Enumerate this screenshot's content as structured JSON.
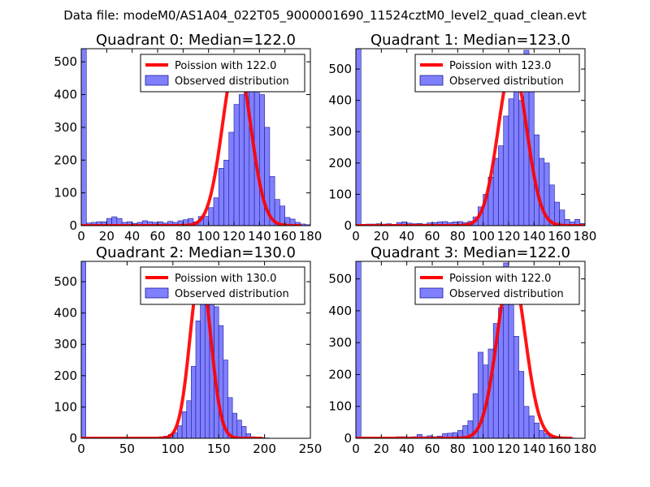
{
  "figure": {
    "suptitle": "Data file: modeM0/AS1A04_022T05_9000001690_11524cztM0_level2_quad_clean.evt"
  },
  "chart_data": [
    {
      "type": "histogram_with_line",
      "title": "Quadrant 0: Median=122.0",
      "median": 122.0,
      "xlim": [
        0,
        180
      ],
      "xticks": [
        0,
        20,
        40,
        60,
        80,
        100,
        120,
        140,
        160,
        180
      ],
      "ylim": [
        0,
        540
      ],
      "yticks": [
        0,
        100,
        200,
        300,
        400,
        500
      ],
      "bin_width": 4,
      "bin_start": 0,
      "values": [
        540,
        8,
        10,
        12,
        12,
        22,
        27,
        22,
        10,
        12,
        7,
        10,
        15,
        12,
        10,
        12,
        8,
        13,
        10,
        15,
        18,
        22,
        12,
        28,
        28,
        55,
        85,
        175,
        200,
        285,
        370,
        400,
        500,
        420,
        505,
        400,
        300,
        150,
        80,
        60,
        25,
        20,
        10,
        5,
        3,
        1
      ],
      "fit": {
        "mu": 122.0,
        "sigma": 11.0,
        "peak": 510,
        "x_range": [
          0,
          173
        ]
      },
      "legend": [
        {
          "label": "Poission with 122.0",
          "kind": "line",
          "color": "#ff0000"
        },
        {
          "label": "Observed distribution",
          "kind": "patch",
          "color": "#8080ff"
        }
      ]
    },
    {
      "type": "histogram_with_line",
      "title": "Quadrant 1: Median=123.0",
      "median": 123.0,
      "xlim": [
        0,
        180
      ],
      "xticks": [
        0,
        20,
        40,
        60,
        80,
        100,
        120,
        140,
        160,
        180
      ],
      "ylim": [
        0,
        565
      ],
      "yticks": [
        0,
        100,
        200,
        300,
        400,
        500
      ],
      "bin_width": 4,
      "bin_start": 0,
      "values": [
        565,
        4,
        5,
        5,
        6,
        5,
        6,
        4,
        10,
        12,
        8,
        6,
        7,
        5,
        9,
        10,
        12,
        13,
        10,
        12,
        13,
        10,
        14,
        28,
        60,
        100,
        155,
        215,
        255,
        350,
        405,
        500,
        400,
        560,
        500,
        290,
        215,
        200,
        130,
        75,
        50,
        20,
        12,
        20,
        7,
        5,
        5
      ],
      "fit": {
        "mu": 123.0,
        "sigma": 11.1,
        "peak": 515,
        "x_range": [
          0,
          180
        ]
      },
      "legend": [
        {
          "label": "Poission with 123.0",
          "kind": "line",
          "color": "#ff0000"
        },
        {
          "label": "Observed distribution",
          "kind": "patch",
          "color": "#8080ff"
        }
      ]
    },
    {
      "type": "histogram_with_line",
      "title": "Quadrant 2: Median=130.0",
      "median": 130.0,
      "xlim": [
        0,
        250
      ],
      "xticks": [
        0,
        50,
        100,
        150,
        200,
        250
      ],
      "ylim": [
        0,
        565
      ],
      "yticks": [
        0,
        100,
        200,
        300,
        400,
        500
      ],
      "bin_width": 5,
      "bin_start": 0,
      "values": [
        565,
        3,
        3,
        2,
        2,
        2,
        2,
        2,
        2,
        3,
        3,
        2,
        3,
        3,
        3,
        3,
        4,
        5,
        7,
        12,
        18,
        40,
        85,
        120,
        230,
        375,
        440,
        520,
        430,
        420,
        360,
        250,
        130,
        80,
        58,
        38,
        15,
        5,
        3,
        2,
        1
      ],
      "fit": {
        "mu": 130.0,
        "sigma": 11.4,
        "peak": 530,
        "x_range": [
          0,
          198
        ]
      },
      "legend": [
        {
          "label": "Poission with 130.0",
          "kind": "line",
          "color": "#ff0000"
        },
        {
          "label": "Observed distribution",
          "kind": "patch",
          "color": "#8080ff"
        }
      ]
    },
    {
      "type": "histogram_with_line",
      "title": "Quadrant 3: Median=122.0",
      "median": 122.0,
      "xlim": [
        0,
        180
      ],
      "xticks": [
        0,
        20,
        40,
        60,
        80,
        100,
        120,
        140,
        160,
        180
      ],
      "ylim": [
        0,
        555
      ],
      "yticks": [
        0,
        100,
        200,
        300,
        400,
        500
      ],
      "bin_width": 4,
      "bin_start": 0,
      "values": [
        555,
        3,
        3,
        3,
        3,
        3,
        3,
        3,
        5,
        5,
        4,
        5,
        12,
        5,
        8,
        5,
        7,
        15,
        16,
        18,
        25,
        40,
        55,
        140,
        270,
        230,
        280,
        360,
        410,
        550,
        470,
        320,
        210,
        100,
        70,
        48,
        25,
        15,
        6,
        3,
        2,
        2,
        1
      ],
      "fit": {
        "mu": 122.0,
        "sigma": 11.0,
        "peak": 530,
        "x_range": [
          0,
          170
        ]
      },
      "legend": [
        {
          "label": "Poission with 122.0",
          "kind": "line",
          "color": "#ff0000"
        },
        {
          "label": "Observed distribution",
          "kind": "patch",
          "color": "#8080ff"
        }
      ]
    }
  ]
}
